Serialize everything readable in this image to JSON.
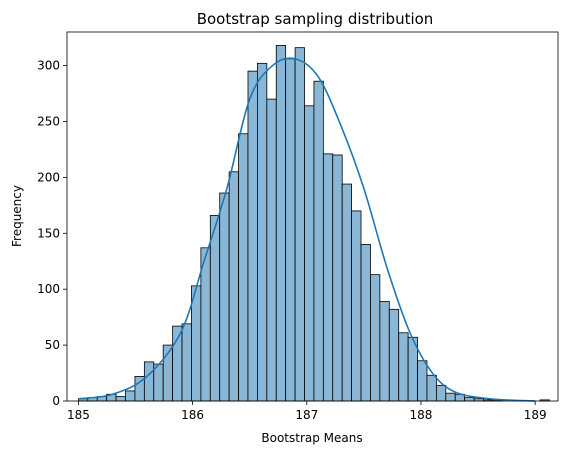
{
  "chart_data": {
    "type": "bar",
    "title": "Bootstrap sampling distribution",
    "xlabel": "Bootstrap Means",
    "ylabel": "Frequency",
    "xlim": [
      184.9,
      189.2
    ],
    "ylim": [
      0,
      330
    ],
    "xticks": [
      185,
      186,
      187,
      188,
      189
    ],
    "yticks": [
      0,
      50,
      100,
      150,
      200,
      250,
      300
    ],
    "bin_start": 185.0,
    "bin_width": 0.0825,
    "counts": [
      2,
      3,
      4,
      6,
      4,
      9,
      22,
      35,
      33,
      50,
      67,
      69,
      103,
      137,
      166,
      186,
      205,
      239,
      295,
      302,
      270,
      318,
      306,
      316,
      264,
      286,
      221,
      220,
      194,
      170,
      140,
      113,
      89,
      82,
      61,
      57,
      36,
      23,
      14,
      7,
      6,
      3,
      2,
      1,
      1,
      0,
      0,
      0,
      0,
      1
    ],
    "kde": {
      "x": [
        185.0,
        185.3,
        185.6,
        185.9,
        186.1,
        186.3,
        186.5,
        186.7,
        186.9,
        187.1,
        187.3,
        187.5,
        187.7,
        187.9,
        188.1,
        188.3,
        188.6,
        189.0
      ],
      "y": [
        2,
        6,
        22,
        62,
        125,
        190,
        270,
        300,
        306,
        290,
        246,
        190,
        120,
        62,
        25,
        8,
        2,
        0
      ]
    },
    "bar_color": "#8bb7d6",
    "line_color": "#1f77b4",
    "grid": false
  }
}
